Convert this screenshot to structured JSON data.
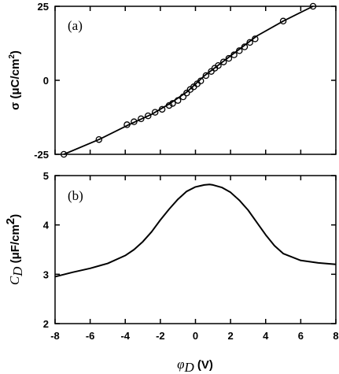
{
  "chart_data": [
    {
      "type": "line",
      "panel_label": "(a)",
      "xlim": [
        -8,
        8
      ],
      "ylim": [
        -25,
        25
      ],
      "y_ticks": [
        -25,
        0,
        25
      ],
      "y_tick_labels": [
        "-25",
        "0",
        "25"
      ],
      "ylabel": {
        "text": "σ (μC/cm",
        "sup": "2",
        "after": ")"
      },
      "grid": false,
      "series": [
        {
          "line": {
            "x": [
              -7.5,
              -5.5,
              -3.8,
              -2.5,
              -1.5,
              -0.5,
              0.5,
              1.5,
              2.5,
              3.5,
              5.0,
              6.7
            ],
            "y": [
              -25,
              -20,
              -15,
              -11.5,
              -8,
              -4,
              1.5,
              6,
              10.5,
              15,
              20,
              25
            ]
          },
          "markers": {
            "x": [
              -7.5,
              -5.5,
              -3.9,
              -3.5,
              -3.1,
              -2.7,
              -2.3,
              -1.9,
              -1.5,
              -1.3,
              -1.0,
              -0.7,
              -0.5,
              -0.3,
              -0.1,
              0.1,
              0.3,
              0.6,
              0.9,
              1.1,
              1.3,
              1.6,
              1.9,
              2.2,
              2.5,
              2.8,
              3.1,
              3.4,
              5.0,
              6.7
            ],
            "y": [
              -25,
              -20,
              -15,
              -14,
              -13,
              -12,
              -10.8,
              -9.8,
              -8.5,
              -7.8,
              -6.8,
              -5.6,
              -4.3,
              -3.1,
              -2.2,
              -1.2,
              -0.2,
              1.6,
              3,
              4.1,
              5,
              6.2,
              7.4,
              8.6,
              10,
              11.3,
              12.8,
              14,
              20,
              25
            ]
          }
        }
      ]
    },
    {
      "type": "line",
      "panel_label": "(b)",
      "xlim": [
        -8,
        8
      ],
      "ylim": [
        2,
        5
      ],
      "y_ticks": [
        2,
        3,
        4,
        5
      ],
      "y_tick_labels": [
        "2",
        "3",
        "4",
        "5"
      ],
      "ylabel": {
        "main": "C",
        "sub": "D",
        "rest": " (μF/cm",
        "sup": "2",
        "after": ")"
      },
      "x_ticks": [
        -8,
        -6,
        -4,
        -2,
        0,
        2,
        4,
        6,
        8
      ],
      "x_tick_labels": [
        "-8",
        "-6",
        "-4",
        "-2",
        "0",
        "2",
        "4",
        "6",
        "8"
      ],
      "xlabel": {
        "main": "φ",
        "sub": "D",
        "after": " (V)"
      },
      "grid": false,
      "series": [
        {
          "x": [
            -8,
            -7,
            -6,
            -5,
            -4,
            -3.5,
            -3,
            -2.5,
            -2,
            -1.5,
            -1,
            -0.5,
            0,
            0.5,
            0.8,
            1,
            1.5,
            2,
            2.5,
            3,
            3.5,
            4,
            4.5,
            5,
            6,
            7,
            8
          ],
          "y": [
            2.95,
            3.04,
            3.12,
            3.22,
            3.38,
            3.5,
            3.66,
            3.86,
            4.1,
            4.32,
            4.52,
            4.68,
            4.77,
            4.81,
            4.82,
            4.81,
            4.76,
            4.66,
            4.5,
            4.3,
            4.05,
            3.8,
            3.58,
            3.42,
            3.28,
            3.23,
            3.2
          ]
        }
      ]
    }
  ]
}
